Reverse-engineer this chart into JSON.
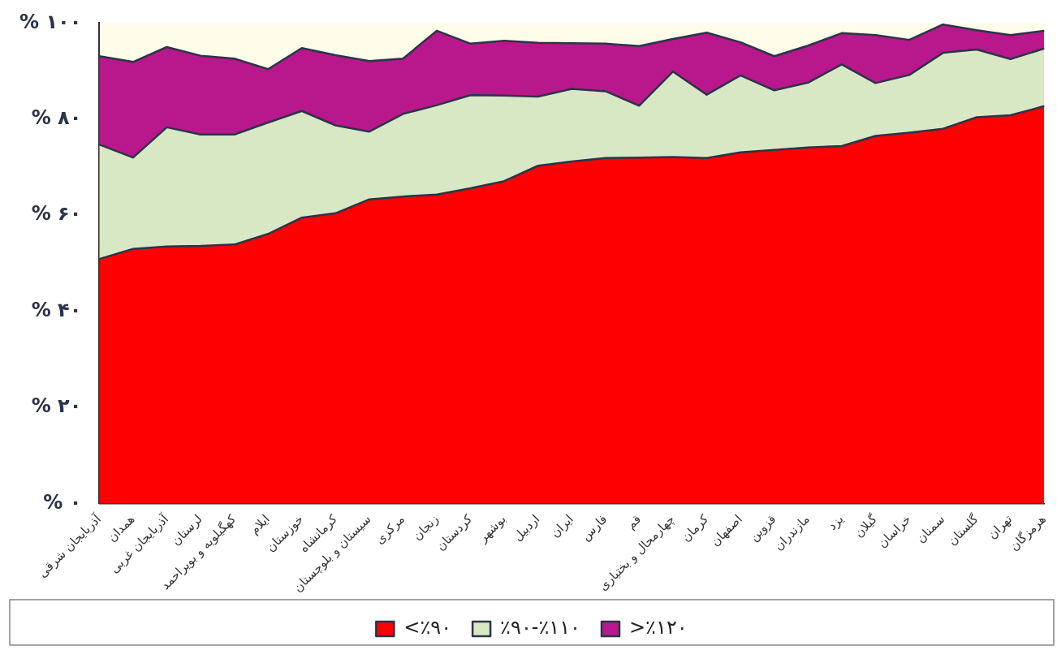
{
  "chart_data": {
    "type": "area",
    "stacked": true,
    "grid": false,
    "legend": "bottom",
    "categories": [
      "آذربایجان شرقی",
      "همدان",
      "آذربایجان غربی",
      "لرستان",
      "کهگیلویه و بویراحمد",
      "ایلام",
      "خوزستان",
      "کرمانشاه",
      "سیستان و بلوچستان",
      "مرکزی",
      "زنجان",
      "کردستان",
      "بوشهر",
      "اردبیل",
      "ایران",
      "فارس",
      "قم",
      "چهارمحال و بختیاری",
      "کرمان",
      "اصفهان",
      "قزوین",
      "مازندران",
      "یزد",
      "گیلان",
      "خراسان",
      "سمنان",
      "گلستان",
      "تهران",
      "هرمزگان"
    ],
    "ylim": [
      0,
      100
    ],
    "yticks": [
      {
        "value": 0,
        "label": "% ۰"
      },
      {
        "value": 20,
        "label": "% ۲۰"
      },
      {
        "value": 40,
        "label": "% ۴۰"
      },
      {
        "value": 60,
        "label": "% ۶۰"
      },
      {
        "value": 80,
        "label": "% ۸۰"
      },
      {
        "value": 100,
        "label": "% ۱۰۰"
      }
    ],
    "series": [
      {
        "name": "<٪۹۰",
        "color": "#ff0000",
        "values": [
          50.9,
          53.0,
          53.5,
          53.6,
          53.9,
          56.1,
          59.5,
          60.4,
          63.3,
          63.9,
          64.3,
          65.6,
          67.1,
          70.3,
          71.2,
          71.9,
          72.0,
          72.1,
          71.9,
          73.1,
          73.6,
          74.1,
          74.4,
          76.5,
          77.2,
          78.0,
          80.4,
          80.8,
          82.7
        ]
      },
      {
        "name": "٪۹۰-٪۱۱۰",
        "color": "#d8e8c4",
        "values": [
          23.8,
          19.0,
          24.8,
          23.2,
          22.9,
          23.2,
          22.2,
          18.3,
          14.1,
          17.2,
          18.6,
          19.4,
          17.8,
          14.4,
          15.1,
          13.9,
          10.8,
          17.8,
          13.2,
          16.0,
          12.4,
          13.5,
          17.0,
          11.0,
          12.0,
          15.8,
          14.1,
          11.7,
          12.0
        ]
      },
      {
        "name": ">٪۱۲۰",
        "color": "#b8188c",
        "values": [
          18.4,
          19.9,
          16.7,
          16.4,
          15.8,
          11.1,
          13.1,
          14.6,
          14.7,
          11.5,
          15.5,
          10.7,
          11.4,
          11.2,
          9.5,
          9.9,
          12.4,
          6.8,
          12.9,
          6.9,
          7.1,
          7.7,
          6.5,
          10.0,
          7.3,
          5.9,
          4.0,
          5.0,
          3.7
        ]
      }
    ]
  }
}
